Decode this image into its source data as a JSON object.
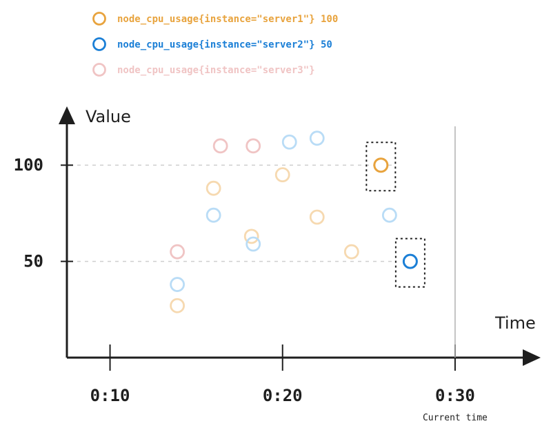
{
  "chart_data": {
    "type": "scatter",
    "title": "",
    "xlabel": "Time",
    "ylabel": "Value",
    "x_ticks": [
      {
        "value": 10,
        "label": "0:10"
      },
      {
        "value": 20,
        "label": "0:20"
      },
      {
        "value": 30,
        "label": "0:30"
      }
    ],
    "y_ticks": [
      {
        "value": 50,
        "label": "50"
      },
      {
        "value": 100,
        "label": "100"
      }
    ],
    "xlim": [
      7.5,
      34
    ],
    "ylim": [
      0,
      132
    ],
    "grid": "horizontal dashed at y ticks",
    "legend_position": "top-left",
    "current_time": {
      "x": 30,
      "label": "Current time"
    },
    "series": [
      {
        "name": "node_cpu_usage{instance=\"server1\"}",
        "legend_label": "node_cpu_usage{instance=\"server1\"} 100",
        "current_value": "100",
        "color": "#e8a33d",
        "faded_color": "#f6d9b0",
        "points": [
          {
            "x": 13.9,
            "y": 27,
            "highlight": false
          },
          {
            "x": 16.0,
            "y": 88,
            "highlight": false
          },
          {
            "x": 18.2,
            "y": 63,
            "highlight": false
          },
          {
            "x": 20.0,
            "y": 95,
            "highlight": false
          },
          {
            "x": 22.0,
            "y": 73,
            "highlight": false
          },
          {
            "x": 24.0,
            "y": 55,
            "highlight": false
          },
          {
            "x": 25.7,
            "y": 100,
            "highlight": true
          }
        ]
      },
      {
        "name": "node_cpu_usage{instance=\"server2\"}",
        "legend_label": "node_cpu_usage{instance=\"server2\"} 50",
        "current_value": "50",
        "color": "#1b7fd6",
        "faded_color": "#b9dcf6",
        "points": [
          {
            "x": 13.9,
            "y": 38,
            "highlight": false
          },
          {
            "x": 16.0,
            "y": 74,
            "highlight": false
          },
          {
            "x": 18.3,
            "y": 59,
            "highlight": false
          },
          {
            "x": 20.4,
            "y": 112,
            "highlight": false
          },
          {
            "x": 22.0,
            "y": 114,
            "highlight": false
          },
          {
            "x": 26.2,
            "y": 74,
            "highlight": false
          },
          {
            "x": 27.4,
            "y": 50,
            "highlight": true
          }
        ]
      },
      {
        "name": "node_cpu_usage{instance=\"server3\"}",
        "legend_label": "node_cpu_usage{instance=\"server3\"}",
        "current_value": "",
        "color": "#f0b8b8",
        "faded_color": "#f0c4c4",
        "points": [
          {
            "x": 13.9,
            "y": 55,
            "highlight": false
          },
          {
            "x": 16.4,
            "y": 110,
            "highlight": false
          },
          {
            "x": 18.3,
            "y": 110,
            "highlight": false
          }
        ]
      }
    ]
  }
}
